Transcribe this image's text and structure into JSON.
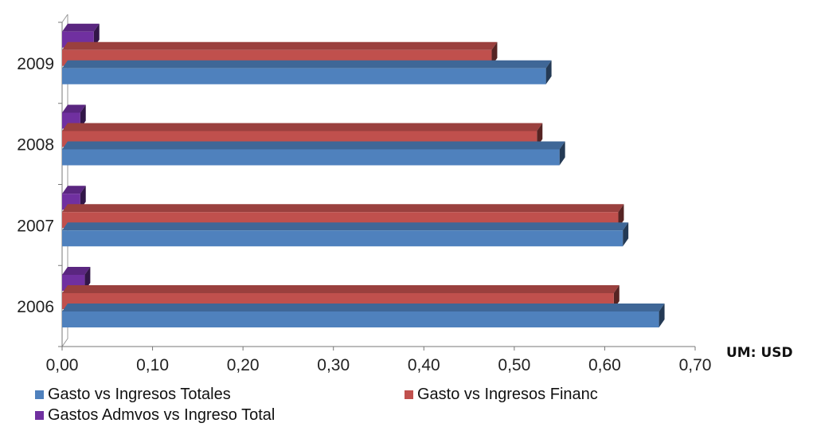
{
  "chart_data": {
    "type": "bar",
    "orientation": "horizontal",
    "categories": [
      "2006",
      "2007",
      "2008",
      "2009"
    ],
    "series": [
      {
        "name": "Gasto vs Ingresos Totales",
        "color": "#4F81BD",
        "values": [
          0.66,
          0.62,
          0.55,
          0.535
        ]
      },
      {
        "name": "Gasto vs Ingresos Financ",
        "color": "#C0504D",
        "values": [
          0.61,
          0.615,
          0.525,
          0.475
        ]
      },
      {
        "name": "Gastos Admvos vs Ingreso Total",
        "color": "#7030A0",
        "values": [
          0.025,
          0.02,
          0.02,
          0.035
        ]
      }
    ],
    "xlim": [
      0,
      0.7
    ],
    "xticks": [
      "0,00",
      "0,10",
      "0,20",
      "0,30",
      "0,40",
      "0,50",
      "0,60",
      "0,70"
    ],
    "unit_label": "UM: USD",
    "legend_position": "bottom",
    "grid": false,
    "style": "3d"
  }
}
